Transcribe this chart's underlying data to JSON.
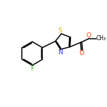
{
  "background_color": "#ffffff",
  "figsize": [
    1.52,
    1.52
  ],
  "dpi": 100,
  "bond_color": "#000000",
  "bond_width": 1.1,
  "atom_colors": {
    "F": "#33aa33",
    "S": "#ddaa00",
    "N": "#3333ff",
    "O": "#ff3300",
    "C": "#000000"
  },
  "font_size_atom": 6.5,
  "font_size_methyl": 5.5,
  "xlim": [
    0,
    10
  ],
  "ylim": [
    0,
    10
  ]
}
